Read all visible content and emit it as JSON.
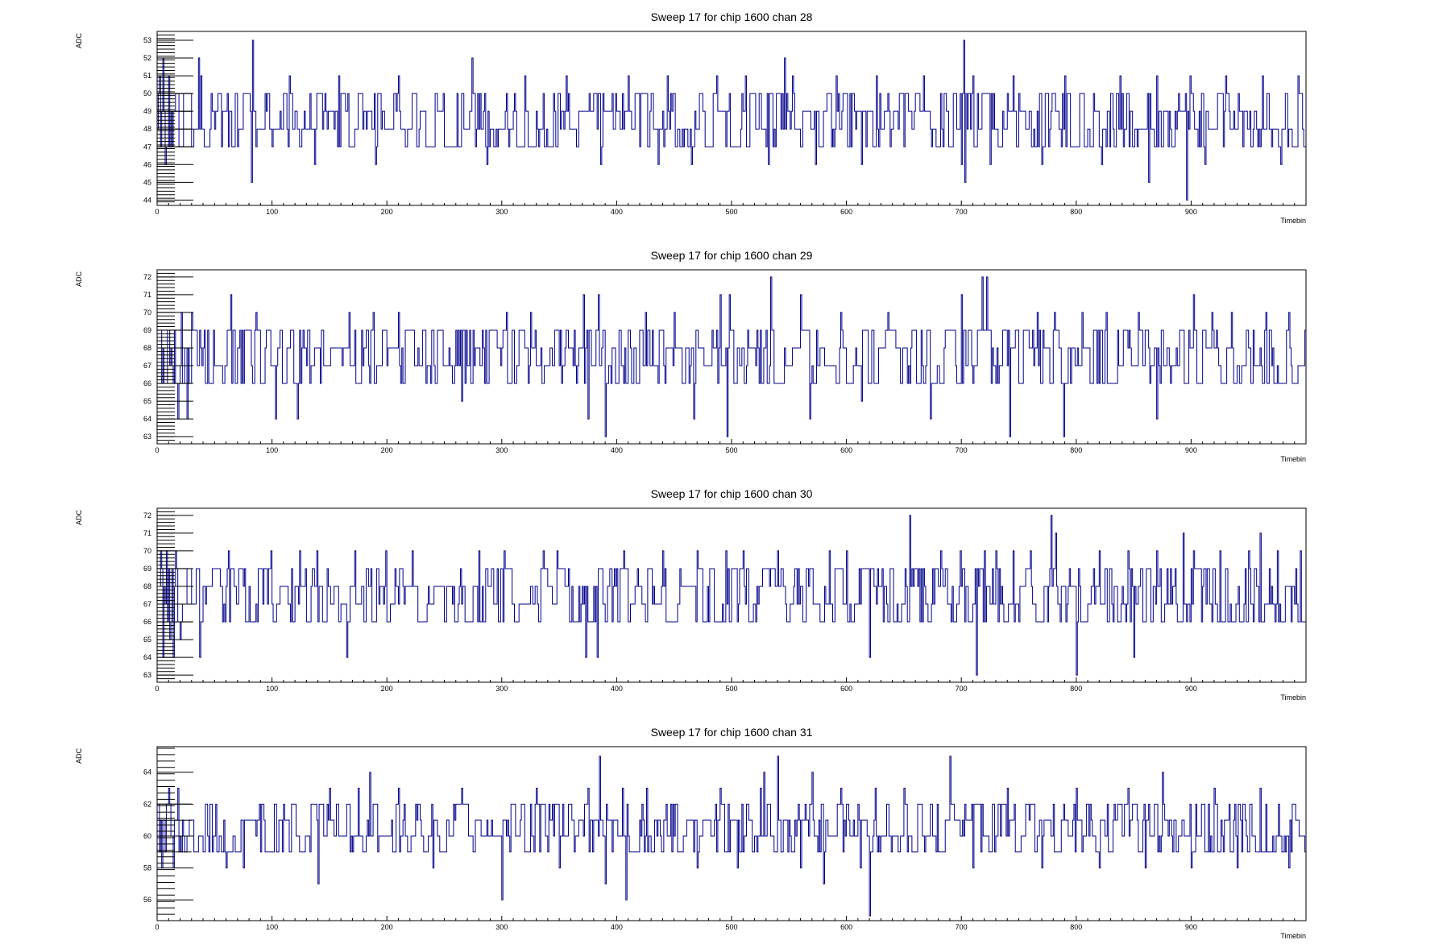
{
  "chart_data": [
    {
      "type": "line",
      "title": "Sweep 17 for chip 1600 chan 28",
      "xlabel": "Timebin",
      "ylabel": "ADC",
      "xlim": [
        0,
        1000
      ],
      "ylim": [
        43.7,
        53.5
      ],
      "xticks": [
        "0",
        "100",
        "200",
        "300",
        "400",
        "500",
        "600",
        "700",
        "800",
        "900"
      ],
      "yticks": [
        "44",
        "45",
        "46",
        "47",
        "48",
        "49",
        "50",
        "51",
        "52",
        "53"
      ],
      "series": [
        {
          "color": "#00008b",
          "baseline": 48.5,
          "range": [
            47,
            50
          ],
          "spikes": [
            [
              2,
              51
            ],
            [
              3,
              47
            ],
            [
              5,
              52
            ],
            [
              7,
              46
            ],
            [
              10,
              51
            ],
            [
              13,
              47
            ],
            [
              36,
              52
            ],
            [
              38,
              51
            ],
            [
              70,
              47
            ],
            [
              82,
              45
            ],
            [
              83,
              53
            ],
            [
              100,
              47
            ],
            [
              115,
              51
            ],
            [
              137,
              46
            ],
            [
              158,
              51
            ],
            [
              190,
              46
            ],
            [
              210,
              51
            ],
            [
              260,
              47
            ],
            [
              274,
              52
            ],
            [
              287,
              46
            ],
            [
              320,
              51
            ],
            [
              337,
              47
            ],
            [
              356,
              51
            ],
            [
              386,
              46
            ],
            [
              410,
              51
            ],
            [
              420,
              47
            ],
            [
              436,
              46
            ],
            [
              444,
              51
            ],
            [
              465,
              46
            ],
            [
              487,
              51
            ],
            [
              503,
              47
            ],
            [
              512,
              51
            ],
            [
              532,
              46
            ],
            [
              546,
              52
            ],
            [
              553,
              51
            ],
            [
              561,
              47
            ],
            [
              573,
              46
            ],
            [
              591,
              51
            ],
            [
              613,
              46
            ],
            [
              626,
              51
            ],
            [
              650,
              47
            ],
            [
              667,
              51
            ],
            [
              700,
              46
            ],
            [
              702,
              53
            ],
            [
              703,
              45
            ],
            [
              710,
              51
            ],
            [
              725,
              46
            ],
            [
              745,
              51
            ],
            [
              770,
              46
            ],
            [
              790,
              51
            ],
            [
              822,
              46
            ],
            [
              838,
              51
            ],
            [
              846,
              47
            ],
            [
              863,
              45
            ],
            [
              870,
              51
            ],
            [
              896,
              44
            ],
            [
              899,
              51
            ],
            [
              912,
              46
            ],
            [
              930,
              51
            ],
            [
              945,
              47
            ],
            [
              962,
              51
            ],
            [
              978,
              46
            ],
            [
              993,
              51
            ],
            [
              998,
              47
            ]
          ]
        }
      ]
    },
    {
      "type": "line",
      "title": "Sweep 17 for chip 1600 chan 29",
      "xlabel": "Timebin",
      "ylabel": "ADC",
      "xlim": [
        0,
        1000
      ],
      "ylim": [
        62.6,
        72.4
      ],
      "xticks": [
        "0",
        "100",
        "200",
        "300",
        "400",
        "500",
        "600",
        "700",
        "800",
        "900"
      ],
      "yticks": [
        "63",
        "64",
        "65",
        "66",
        "67",
        "68",
        "69",
        "70",
        "71",
        "72"
      ],
      "series": [
        {
          "color": "#00008b",
          "baseline": 67.5,
          "range": [
            66,
            69
          ],
          "spikes": [
            [
              4,
              66
            ],
            [
              8,
              66
            ],
            [
              12,
              68
            ],
            [
              15,
              69
            ],
            [
              18,
              64
            ],
            [
              21,
              70
            ],
            [
              26,
              64
            ],
            [
              30,
              70
            ],
            [
              64,
              71
            ],
            [
              86,
              70
            ],
            [
              103,
              64
            ],
            [
              122,
              64
            ],
            [
              167,
              70
            ],
            [
              188,
              70
            ],
            [
              210,
              70
            ],
            [
              265,
              65
            ],
            [
              304,
              70
            ],
            [
              325,
              70
            ],
            [
              371,
              71
            ],
            [
              375,
              64
            ],
            [
              384,
              71
            ],
            [
              390,
              63
            ],
            [
              425,
              70
            ],
            [
              450,
              70
            ],
            [
              467,
              64
            ],
            [
              490,
              71
            ],
            [
              496,
              63
            ],
            [
              498,
              71
            ],
            [
              534,
              72
            ],
            [
              560,
              71
            ],
            [
              568,
              64
            ],
            [
              595,
              70
            ],
            [
              613,
              65
            ],
            [
              636,
              70
            ],
            [
              673,
              64
            ],
            [
              700,
              71
            ],
            [
              718,
              72
            ],
            [
              722,
              72
            ],
            [
              742,
              63
            ],
            [
              766,
              70
            ],
            [
              781,
              70
            ],
            [
              789,
              63
            ],
            [
              805,
              70
            ],
            [
              826,
              70
            ],
            [
              854,
              70
            ],
            [
              870,
              64
            ],
            [
              902,
              71
            ],
            [
              918,
              70
            ],
            [
              935,
              70
            ],
            [
              965,
              70
            ],
            [
              985,
              70
            ]
          ]
        }
      ]
    },
    {
      "type": "line",
      "title": "Sweep 17 for chip 1600 chan 30",
      "xlabel": "Timebin",
      "ylabel": "ADC",
      "xlim": [
        0,
        1000
      ],
      "ylim": [
        62.6,
        72.4
      ],
      "xticks": [
        "0",
        "100",
        "200",
        "300",
        "400",
        "500",
        "600",
        "700",
        "800",
        "900"
      ],
      "yticks": [
        "63",
        "64",
        "65",
        "66",
        "67",
        "68",
        "69",
        "70",
        "71",
        "72"
      ],
      "series": [
        {
          "color": "#00008b",
          "baseline": 67.5,
          "range": [
            66,
            69
          ],
          "spikes": [
            [
              3,
              70
            ],
            [
              5,
              64
            ],
            [
              8,
              70
            ],
            [
              11,
              65
            ],
            [
              14,
              64
            ],
            [
              16,
              70
            ],
            [
              20,
              65
            ],
            [
              37,
              64
            ],
            [
              62,
              70
            ],
            [
              99,
              70
            ],
            [
              124,
              70
            ],
            [
              139,
              70
            ],
            [
              165,
              64
            ],
            [
              172,
              70
            ],
            [
              199,
              70
            ],
            [
              222,
              70
            ],
            [
              280,
              70
            ],
            [
              302,
              70
            ],
            [
              336,
              70
            ],
            [
              348,
              70
            ],
            [
              373,
              64
            ],
            [
              383,
              64
            ],
            [
              406,
              70
            ],
            [
              440,
              70
            ],
            [
              470,
              70
            ],
            [
              495,
              70
            ],
            [
              510,
              70
            ],
            [
              540,
              70
            ],
            [
              585,
              70
            ],
            [
              600,
              70
            ],
            [
              620,
              64
            ],
            [
              655,
              72
            ],
            [
              682,
              70
            ],
            [
              699,
              70
            ],
            [
              713,
              63
            ],
            [
              720,
              70
            ],
            [
              730,
              70
            ],
            [
              745,
              70
            ],
            [
              760,
              70
            ],
            [
              778,
              72
            ],
            [
              782,
              71
            ],
            [
              800,
              63
            ],
            [
              820,
              70
            ],
            [
              845,
              70
            ],
            [
              850,
              64
            ],
            [
              870,
              70
            ],
            [
              893,
              71
            ],
            [
              902,
              70
            ],
            [
              925,
              70
            ],
            [
              950,
              70
            ],
            [
              960,
              71
            ],
            [
              975,
              70
            ],
            [
              995,
              70
            ]
          ]
        }
      ]
    },
    {
      "type": "line",
      "title": "Sweep 17 for chip 1600 chan 31",
      "xlabel": "Timebin",
      "ylabel": "ADC",
      "xlim": [
        0,
        1000
      ],
      "ylim": [
        54.7,
        65.6
      ],
      "xticks": [
        "0",
        "100",
        "200",
        "300",
        "400",
        "500",
        "600",
        "700",
        "800",
        "900"
      ],
      "yticks": [
        "56",
        "58",
        "60",
        "62",
        "64"
      ],
      "series": [
        {
          "color": "#00008b",
          "baseline": 60.5,
          "range": [
            59,
            62
          ],
          "spikes": [
            [
              4,
              58
            ],
            [
              10,
              63
            ],
            [
              14,
              58
            ],
            [
              18,
              63
            ],
            [
              60,
              58
            ],
            [
              75,
              58
            ],
            [
              140,
              57
            ],
            [
              150,
              63
            ],
            [
              175,
              63
            ],
            [
              185,
              64
            ],
            [
              210,
              63
            ],
            [
              240,
              58
            ],
            [
              265,
              63
            ],
            [
              300,
              56
            ],
            [
              330,
              63
            ],
            [
              350,
              58
            ],
            [
              375,
              63
            ],
            [
              385,
              65
            ],
            [
              390,
              57
            ],
            [
              405,
              63
            ],
            [
              408,
              56
            ],
            [
              426,
              63
            ],
            [
              470,
              58
            ],
            [
              490,
              63
            ],
            [
              505,
              58
            ],
            [
              525,
              63
            ],
            [
              528,
              64
            ],
            [
              540,
              65
            ],
            [
              560,
              58
            ],
            [
              570,
              64
            ],
            [
              580,
              57
            ],
            [
              595,
              63
            ],
            [
              612,
              58
            ],
            [
              620,
              55
            ],
            [
              625,
              63
            ],
            [
              650,
              63
            ],
            [
              690,
              65
            ],
            [
              710,
              58
            ],
            [
              740,
              63
            ],
            [
              770,
              58
            ],
            [
              800,
              63
            ],
            [
              820,
              58
            ],
            [
              845,
              63
            ],
            [
              860,
              58
            ],
            [
              875,
              64
            ],
            [
              900,
              58
            ],
            [
              920,
              63
            ],
            [
              940,
              58
            ],
            [
              960,
              63
            ],
            [
              985,
              58
            ]
          ]
        }
      ]
    }
  ]
}
